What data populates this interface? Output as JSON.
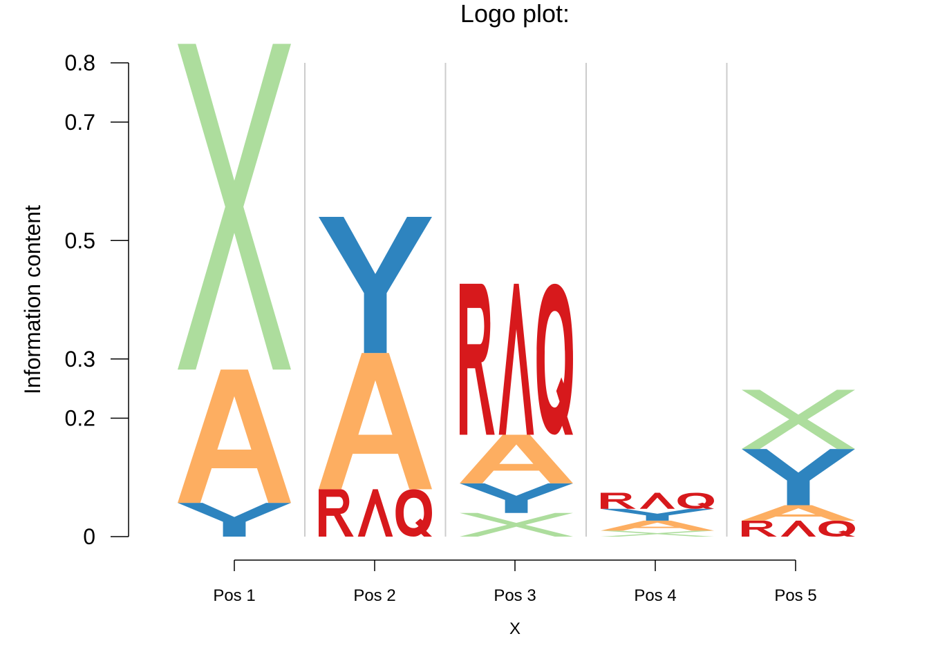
{
  "chart_data": {
    "type": "sequence-logo",
    "title": "Logo plot:",
    "xlabel": "X",
    "ylabel": "Information content",
    "ylim": [
      0,
      0.8
    ],
    "yticks": [
      {
        "value": 0,
        "label": "0"
      },
      {
        "value": 0.2,
        "label": "0.2"
      },
      {
        "value": 0.3,
        "label": "0.3"
      },
      {
        "value": 0.5,
        "label": "0.5"
      },
      {
        "value": 0.7,
        "label": "0.7"
      },
      {
        "value": 0.8,
        "label": "0.8"
      }
    ],
    "categories": [
      "Pos 1",
      "Pos 2",
      "Pos 3",
      "Pos 4",
      "Pos 5"
    ],
    "colors": {
      "X": "#addd9d",
      "Y": "#2e84bf",
      "A": "#fdae61",
      "R": "#d7191c",
      "A_red": "#d7191c",
      "Q": "#d7191c"
    },
    "stacks": [
      {
        "position": "Pos 1",
        "letters": [
          {
            "letter": "Y",
            "height": 0.057,
            "color": "#2e84bf"
          },
          {
            "letter": "A",
            "height": 0.225,
            "color": "#fdae61"
          },
          {
            "letter": "X",
            "height": 0.55,
            "color": "#addd9d"
          }
        ]
      },
      {
        "position": "Pos 2",
        "letters": [
          {
            "letter": "RAQ",
            "height": 0.08,
            "color": "#d7191c"
          },
          {
            "letter": "A",
            "height": 0.23,
            "color": "#fdae61"
          },
          {
            "letter": "Y",
            "height": 0.23,
            "color": "#2e84bf"
          }
        ]
      },
      {
        "position": "Pos 3",
        "letters": [
          {
            "letter": "X",
            "height": 0.04,
            "color": "#addd9d"
          },
          {
            "letter": "Y",
            "height": 0.05,
            "color": "#2e84bf"
          },
          {
            "letter": "A",
            "height": 0.082,
            "color": "#fdae61"
          },
          {
            "letter": "RAQ",
            "height": 0.255,
            "color": "#d7191c"
          }
        ]
      },
      {
        "position": "Pos 4",
        "letters": [
          {
            "letter": "X",
            "height": 0.01,
            "color": "#addd9d"
          },
          {
            "letter": "A",
            "height": 0.017,
            "color": "#fdae61"
          },
          {
            "letter": "Y",
            "height": 0.02,
            "color": "#2e84bf"
          },
          {
            "letter": "RAQ",
            "height": 0.027,
            "color": "#d7191c"
          }
        ]
      },
      {
        "position": "Pos 5",
        "letters": [
          {
            "letter": "RAQ",
            "height": 0.027,
            "color": "#d7191c"
          },
          {
            "letter": "A",
            "height": 0.026,
            "color": "#fdae61"
          },
          {
            "letter": "Y",
            "height": 0.095,
            "color": "#2e84bf"
          },
          {
            "letter": "X",
            "height": 0.1,
            "color": "#addd9d"
          }
        ]
      }
    ]
  }
}
